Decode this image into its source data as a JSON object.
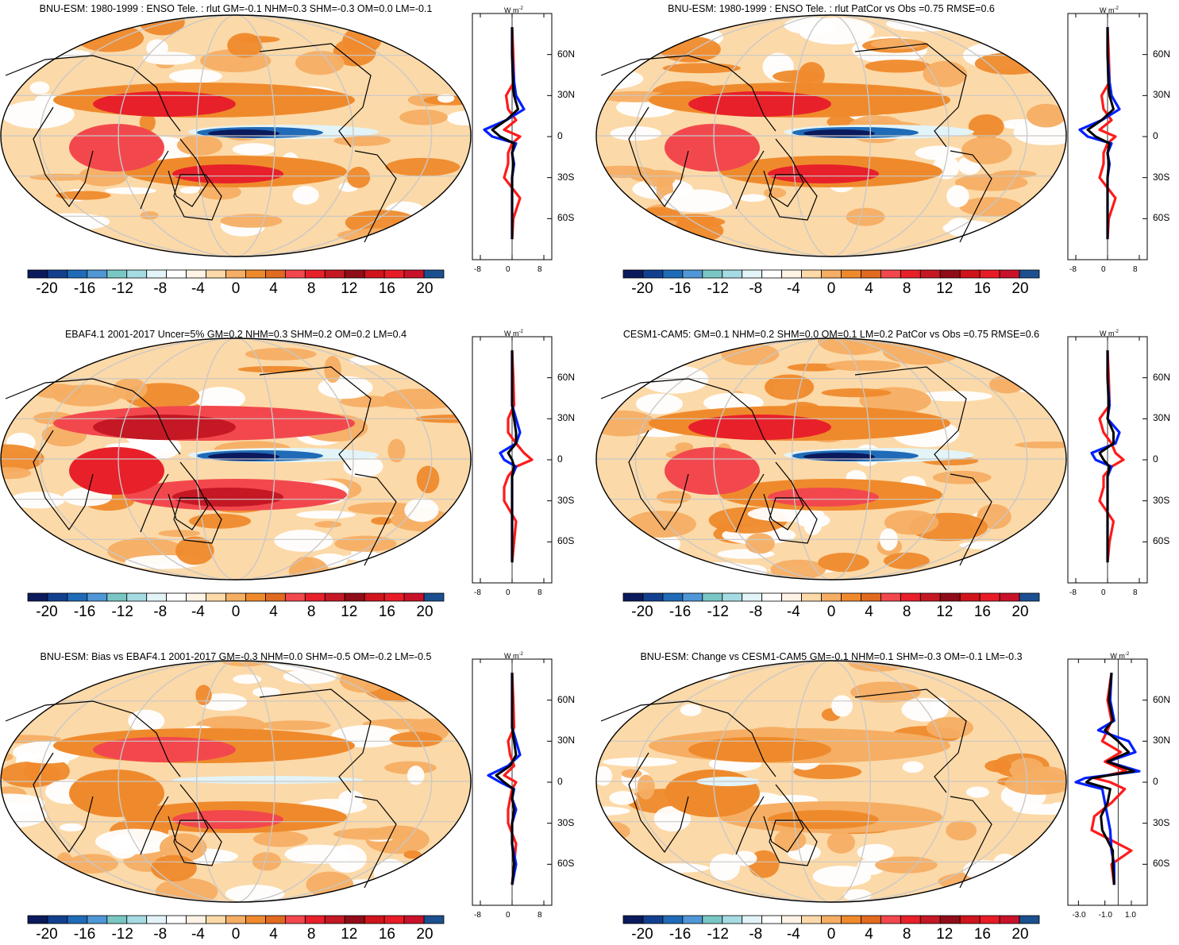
{
  "colorbar": {
    "labels": [
      "-20",
      "-16",
      "-12",
      "-8",
      "-4",
      "0",
      "4",
      "8",
      "12",
      "16",
      "20"
    ],
    "colors": [
      "#0b1a5c",
      "#12408f",
      "#1f6bb8",
      "#4f97d6",
      "#79c7c4",
      "#a6dbe3",
      "#e3f4f8",
      "#ffffff",
      "#fff3e5",
      "#fcd9a8",
      "#f5ae63",
      "#ef8a2c",
      "#e06a20",
      "#f2484d",
      "#e8202a",
      "#c41824",
      "#900c18",
      "#d1141c",
      "#e81c26",
      "#c9122a",
      "#1b4f8f"
    ]
  },
  "unit": "W m",
  "unit_exp": "-2",
  "lat_labels": [
    "60N",
    "30N",
    "0",
    "30S",
    "60S"
  ],
  "series_colors": {
    "model": "#0020ff",
    "obs": "#ff1a1a",
    "diff": "#000000"
  },
  "panels": [
    {
      "id": "p1",
      "title": "BNU-ESM: 1980-1999 : ENSO Tele. : rlut GM=-0.1 NHM=0.3 SHM=-0.3 OM=0.0 LM=-0.1",
      "x_ticks": [
        "-8",
        "0",
        "8"
      ],
      "chart_data": {
        "type": "line",
        "xlabel": "W m-2",
        "xlim": [
          -10,
          10
        ],
        "series": [
          {
            "role": "model",
            "lat": [
              80,
              60,
              40,
              30,
              20,
              12,
              5,
              0,
              -5,
              -12,
              -20,
              -30,
              -45,
              -60,
              -75
            ],
            "values": [
              0,
              0,
              0.5,
              1,
              3,
              -1.5,
              -7,
              -5,
              1,
              0,
              0.5,
              0,
              0,
              0,
              0
            ]
          },
          {
            "role": "obs",
            "lat": [
              80,
              60,
              40,
              30,
              20,
              12,
              5,
              0,
              -5,
              -12,
              -20,
              -30,
              -45,
              -60,
              -75
            ],
            "values": [
              0,
              0.3,
              0.5,
              -1.5,
              -1,
              1,
              -2,
              2,
              0,
              -1,
              -1,
              -2,
              2,
              0.3,
              0
            ]
          },
          {
            "role": "diff",
            "lat": [
              80,
              60,
              40,
              30,
              20,
              12,
              5,
              0,
              -5,
              -12,
              -20,
              -30,
              -45,
              -60,
              -75
            ],
            "values": [
              0,
              0,
              0.2,
              0.5,
              1.5,
              -1.5,
              -5,
              -3,
              0.5,
              0,
              0.3,
              0,
              0,
              0,
              0
            ]
          }
        ]
      }
    },
    {
      "id": "p2",
      "title": "BNU-ESM: 1980-1999 : ENSO Tele. : rlut PatCor vs Obs =0.75 RMSE=0.6",
      "x_ticks": [
        "-8",
        "0",
        "8"
      ],
      "chart_data": {
        "type": "line",
        "xlabel": "W m-2",
        "xlim": [
          -10,
          10
        ],
        "series": [
          {
            "role": "model",
            "lat": [
              80,
              60,
              40,
              30,
              20,
              12,
              5,
              0,
              -5,
              -12,
              -20,
              -30,
              -45,
              -60,
              -75
            ],
            "values": [
              0,
              0,
              0.5,
              1,
              3,
              -1.5,
              -7,
              -5,
              1,
              0,
              0.5,
              0,
              0,
              0,
              0
            ]
          },
          {
            "role": "obs",
            "lat": [
              80,
              60,
              40,
              30,
              20,
              12,
              5,
              0,
              -5,
              -12,
              -20,
              -30,
              -45,
              -60,
              -75
            ],
            "values": [
              0,
              0.3,
              0.5,
              -1.5,
              -1,
              1,
              -2,
              2,
              0,
              -1,
              -1,
              -2,
              2,
              0.3,
              0
            ]
          },
          {
            "role": "diff",
            "lat": [
              80,
              60,
              40,
              30,
              20,
              12,
              5,
              0,
              -5,
              -12,
              -20,
              -30,
              -45,
              -60,
              -75
            ],
            "values": [
              0,
              0,
              0.2,
              0.5,
              1.5,
              -1.5,
              -5,
              -3,
              0.5,
              0,
              0.3,
              0,
              0,
              0,
              0
            ]
          }
        ]
      }
    },
    {
      "id": "p3",
      "title": "EBAF4.1 2001-2017 Uncer=5% GM=0.2 NHM=0.3 SHM=0.2 OM=0.2 LM=0.4",
      "x_ticks": [
        "-8",
        "0",
        "8"
      ],
      "chart_data": {
        "type": "line",
        "xlabel": "W m-2",
        "xlim": [
          -10,
          10
        ],
        "series": [
          {
            "role": "model",
            "lat": [
              80,
              60,
              40,
              30,
              20,
              12,
              5,
              0,
              -5,
              -12,
              -20,
              -30,
              -45,
              -60,
              -75
            ],
            "values": [
              0,
              0,
              0,
              1,
              2,
              1,
              -3,
              -2,
              1,
              0,
              0,
              0,
              0,
              0,
              0
            ]
          },
          {
            "role": "obs",
            "lat": [
              80,
              60,
              40,
              30,
              20,
              12,
              5,
              0,
              -5,
              -12,
              -20,
              -30,
              -45,
              -60,
              -75
            ],
            "values": [
              0,
              0.3,
              0.5,
              -1,
              -1,
              1,
              3,
              5,
              1,
              -1,
              -2,
              -2,
              1,
              0.5,
              0
            ]
          },
          {
            "role": "diff",
            "lat": [
              80,
              60,
              40,
              30,
              20,
              12,
              5,
              0,
              -5,
              -12,
              -20,
              -30,
              -45,
              -60,
              -75
            ],
            "values": [
              0,
              0,
              0,
              0.5,
              1,
              1,
              -1,
              0,
              0.5,
              0,
              0,
              0,
              0,
              0,
              0
            ]
          }
        ]
      }
    },
    {
      "id": "p4",
      "title": "CESM1-CAM5: GM=0.1 NHM=0.2 SHM=0.0 OM=0.1 LM=0.2 PatCor vs Obs =0.75 RMSE=0.6",
      "x_ticks": [
        "-8",
        "0",
        "8"
      ],
      "chart_data": {
        "type": "line",
        "xlabel": "W m-2",
        "xlim": [
          -10,
          10
        ],
        "series": [
          {
            "role": "model",
            "lat": [
              80,
              60,
              40,
              30,
              20,
              12,
              5,
              0,
              -5,
              -12,
              -20,
              -30,
              -45,
              -60,
              -75
            ],
            "values": [
              0,
              0,
              0.5,
              0,
              3,
              2,
              -4,
              -3,
              1,
              0,
              0,
              0,
              0,
              0,
              0
            ]
          },
          {
            "role": "obs",
            "lat": [
              80,
              60,
              40,
              30,
              20,
              12,
              5,
              0,
              -5,
              -12,
              -20,
              -30,
              -45,
              -60,
              -75
            ],
            "values": [
              0,
              0.3,
              0.5,
              -2,
              -1,
              1,
              2,
              4,
              1,
              -1,
              -1,
              -2,
              1.5,
              0.5,
              0
            ]
          },
          {
            "role": "diff",
            "lat": [
              80,
              60,
              40,
              30,
              20,
              12,
              5,
              0,
              -5,
              -12,
              -20,
              -30,
              -45,
              -60,
              -75
            ],
            "values": [
              0,
              0,
              0.3,
              0,
              1.5,
              1.5,
              -2,
              -1,
              0.5,
              0,
              0,
              0,
              0,
              0,
              0
            ]
          }
        ]
      }
    },
    {
      "id": "p5",
      "title": "BNU-ESM: Bias vs EBAF4.1 2001-2017 GM=-0.3 NHM=0.0 SHM=-0.5 OM=-0.2 LM=-0.5",
      "x_ticks": [
        "-8",
        "0",
        "8"
      ],
      "chart_data": {
        "type": "line",
        "xlabel": "W m-2",
        "xlim": [
          -10,
          10
        ],
        "series": [
          {
            "role": "model",
            "lat": [
              80,
              60,
              40,
              30,
              20,
              12,
              5,
              0,
              -5,
              -12,
              -20,
              -30,
              -45,
              -60,
              -75
            ],
            "values": [
              0,
              0,
              0,
              1,
              2,
              -1,
              -6,
              -3,
              0.5,
              0,
              1,
              0,
              0,
              1,
              0
            ]
          },
          {
            "role": "obs",
            "lat": [
              80,
              60,
              40,
              30,
              20,
              12,
              5,
              0,
              -5,
              -12,
              -20,
              -30,
              -45,
              -60,
              -75
            ],
            "values": [
              0,
              0.3,
              0.5,
              -1,
              -0.5,
              0.5,
              -2,
              1,
              0,
              -0.5,
              -1,
              -1,
              1,
              0.5,
              0
            ]
          },
          {
            "role": "diff",
            "lat": [
              80,
              60,
              40,
              30,
              20,
              12,
              5,
              0,
              -5,
              -12,
              -20,
              -30,
              -45,
              -60,
              -75
            ],
            "values": [
              0,
              0,
              0,
              0.5,
              1,
              -0.5,
              -4,
              -2,
              0.3,
              0,
              0.5,
              0,
              0,
              0.5,
              0
            ]
          }
        ]
      }
    },
    {
      "id": "p6",
      "title": "BNU-ESM: Change vs CESM1-CAM5 GM=-0.1 NHM=0.1 SHM=-0.3 OM=-0.1 LM=-0.3",
      "x_ticks": [
        "-3.0",
        "-1.0",
        "1.0"
      ],
      "chart_data": {
        "type": "line",
        "xlabel": "W m-2",
        "xlim": [
          -3.8,
          2.2
        ],
        "series": [
          {
            "role": "model",
            "lat": [
              80,
              60,
              45,
              38,
              30,
              22,
              15,
              8,
              3,
              0,
              -5,
              -15,
              -25,
              -35,
              -50,
              -60,
              -75
            ],
            "values": [
              -0.5,
              -0.6,
              -0.3,
              -1.5,
              0.8,
              1.3,
              -0.8,
              1.6,
              -2.5,
              -3.2,
              -1.2,
              -1.0,
              -0.8,
              -0.6,
              -0.5,
              -0.3,
              -0.3
            ]
          },
          {
            "role": "obs",
            "lat": [
              80,
              60,
              45,
              38,
              30,
              22,
              15,
              8,
              3,
              0,
              -5,
              -15,
              -25,
              -35,
              -50,
              -60,
              -75
            ],
            "values": [
              -0.5,
              -0.8,
              -0.5,
              -0.8,
              -1.2,
              0.2,
              -1.0,
              0.6,
              -1.8,
              -0.6,
              0.5,
              -0.5,
              -1.8,
              -2.0,
              1.0,
              -0.5,
              -0.3
            ]
          },
          {
            "role": "diff",
            "lat": [
              80,
              60,
              45,
              38,
              30,
              22,
              15,
              8,
              3,
              0,
              -5,
              -15,
              -25,
              -35,
              -50,
              -60,
              -75
            ],
            "values": [
              -0.5,
              -0.7,
              -0.4,
              -1.0,
              0.0,
              0.8,
              -0.8,
              1.2,
              -2.0,
              -2.4,
              -0.6,
              -0.8,
              -1.3,
              -1.2,
              -0.4,
              -0.4,
              -0.3
            ]
          }
        ]
      }
    }
  ]
}
